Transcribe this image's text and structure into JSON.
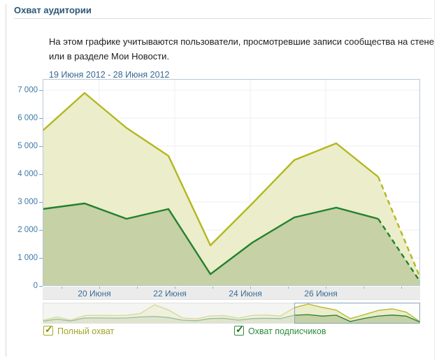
{
  "page": {
    "title": "Охват аудитории",
    "description": "На этом графике учитываются пользователи, просмотревшие записи сообщества на стене или в разделе Мои Новости.",
    "date_range": "19 Июня 2012 - 28 Июня 2012"
  },
  "colors": {
    "title_blue": "#2b587a",
    "axis_label_blue": "#3d79a6",
    "link_blue": "#39688f",
    "plot_border": "#b9c9da",
    "grid": "#efefef",
    "axis_band_bg": "#ebebeb",
    "full_reach_line": "#b3b71f",
    "full_reach_fill": "#ecedca",
    "subscribers_line": "#22812d",
    "subscribers_fill": "#c6d1a5",
    "minimap_selection_border": "#89a4c2",
    "minimap_selection_bg": "#fcfdfd"
  },
  "legend": {
    "items": [
      {
        "label": "Полный охват",
        "checked": true
      },
      {
        "label": "Охват подписчиков",
        "checked": true
      }
    ]
  },
  "chart_data": {
    "type": "area",
    "title": "Охват аудитории",
    "x_days": [
      19,
      20,
      21,
      22,
      23,
      24,
      25,
      26,
      27,
      28
    ],
    "x_month": "Июня",
    "x_year": "2012",
    "xtick_days": [
      20,
      22,
      24,
      26
    ],
    "xtick_labels": [
      "20 Июня",
      "22 Июня",
      "24 Июня",
      "26 Июня"
    ],
    "ylim": [
      0,
      7400
    ],
    "yticks": [
      0,
      1000,
      2000,
      3000,
      4000,
      5000,
      6000,
      7000
    ],
    "ytick_labels": [
      "0",
      "1 000",
      "2 000",
      "3 000",
      "4 000",
      "5 000",
      "6 000",
      "7 000"
    ],
    "grid": true,
    "legend_position": "bottom",
    "series": [
      {
        "name": "Полный охват",
        "values": [
          5550,
          6900,
          5650,
          4650,
          1450,
          2950,
          4500,
          5100,
          3900,
          300
        ],
        "final_segment_dashed": true
      },
      {
        "name": "Охват подписчиков",
        "values": [
          2750,
          2950,
          2400,
          2750,
          420,
          1550,
          2450,
          2800,
          2400,
          150
        ],
        "final_segment_dashed": true
      }
    ],
    "minimap": {
      "days_shown": 28,
      "selection_day_range": [
        19,
        28
      ],
      "series": [
        {
          "name": "Полный охват",
          "values": [
            800,
            2100,
            900,
            2600,
            2700,
            2600,
            2700,
            3400,
            6600,
            4700,
            1700,
            1400,
            2500,
            2600,
            1600,
            2700,
            2800,
            2400,
            5550,
            6900,
            5650,
            4650,
            1450,
            2950,
            4500,
            5100,
            3900,
            300
          ]
        },
        {
          "name": "Охват подписчиков",
          "values": [
            500,
            1300,
            600,
            1700,
            1700,
            1650,
            1700,
            2100,
            2300,
            1900,
            900,
            700,
            1500,
            1600,
            900,
            1500,
            1600,
            1500,
            2750,
            2950,
            2400,
            2750,
            420,
            1550,
            2450,
            2800,
            2400,
            150
          ]
        }
      ]
    }
  }
}
